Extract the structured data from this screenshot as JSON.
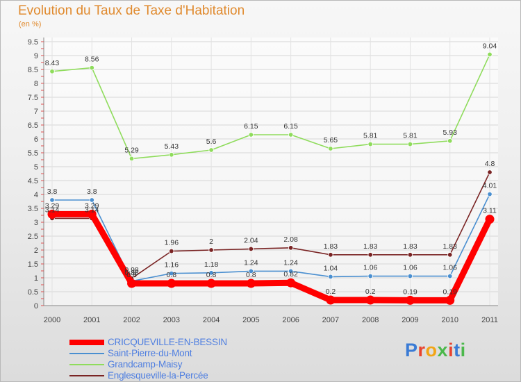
{
  "header": {
    "title": "Evolution du Taux de Taxe d'Habitation",
    "unit": "(en %)"
  },
  "chart_data": {
    "type": "line",
    "title": "Evolution du Taux de Taxe d'Habitation",
    "ylabel": "(en %)",
    "xlabel": "",
    "x": [
      "2000",
      "2001",
      "2002",
      "2003",
      "2004",
      "2005",
      "2006",
      "2007",
      "2008",
      "2009",
      "2010",
      "2011"
    ],
    "ylim": [
      0,
      9.5
    ],
    "yticks": [
      "0",
      "0.5",
      "1",
      "1.5",
      "2",
      "2.5",
      "3",
      "3.5",
      "4",
      "4.5",
      "5",
      "5.5",
      "6",
      "6.5",
      "7",
      "7.5",
      "8",
      "8.5",
      "9",
      "9.5"
    ],
    "grid": true,
    "series": [
      {
        "name": "CRICQUEVILLE-EN-BESSIN",
        "color": "#ff0000",
        "values": [
          3.29,
          3.29,
          0.8,
          0.8,
          0.8,
          0.8,
          0.82,
          0.2,
          0.2,
          0.19,
          0.19,
          3.11
        ],
        "labels": [
          "3.29",
          "3.29",
          "0.8",
          "0.8",
          "0.8",
          "0.8",
          "0.82",
          "0.2",
          "0.2",
          "0.19",
          "0.19",
          "3.11"
        ]
      },
      {
        "name": "Saint-Pierre-du-Mont",
        "color": "#4a8fd0",
        "values": [
          3.8,
          3.8,
          0.88,
          1.16,
          1.18,
          1.24,
          1.24,
          1.04,
          1.06,
          1.06,
          1.06,
          4.01
        ],
        "labels": [
          "3.8",
          "3.8",
          "0.88",
          "1.16",
          "1.18",
          "1.24",
          "1.24",
          "1.04",
          "1.06",
          "1.06",
          "1.06",
          "4.01"
        ]
      },
      {
        "name": "Grandcamp-Maisy",
        "color": "#8fdc5c",
        "values": [
          8.43,
          8.56,
          5.29,
          5.43,
          5.6,
          6.15,
          6.15,
          5.65,
          5.81,
          5.81,
          5.93,
          9.04
        ],
        "labels": [
          "8.43",
          "8.56",
          "5.29",
          "5.43",
          "5.6",
          "6.15",
          "6.15",
          "5.65",
          "5.81",
          "5.81",
          "5.93",
          "9.04"
        ]
      },
      {
        "name": "Englesqueville-la-Percée",
        "color": "#7a2424",
        "values": [
          3.14,
          3.14,
          0.98,
          1.96,
          2,
          2.04,
          2.08,
          1.83,
          1.83,
          1.83,
          1.83,
          4.8
        ],
        "labels": [
          "3.14",
          "3.14",
          "0.98",
          "1.96",
          "2",
          "2.04",
          "2.08",
          "1.83",
          "1.83",
          "1.83",
          "1.83",
          "4.8"
        ]
      }
    ],
    "legend_position": "bottom-left"
  },
  "legend": {
    "items": [
      {
        "label": "CRICQUEVILLE-EN-BESSIN",
        "color": "#ff0000"
      },
      {
        "label": "Saint-Pierre-du-Mont",
        "color": "#4a8fd0"
      },
      {
        "label": "Grandcamp-Maisy",
        "color": "#8fdc5c"
      },
      {
        "label": "Englesqueville-la-Percée",
        "color": "#7a2424"
      }
    ]
  },
  "logo": {
    "text": "Proxiti",
    "letter_colors": [
      "#3a7bd5",
      "#e8432e",
      "#f2a516",
      "#4bb84b",
      "#e8432e",
      "#3a7bd5",
      "#4bb84b"
    ]
  }
}
